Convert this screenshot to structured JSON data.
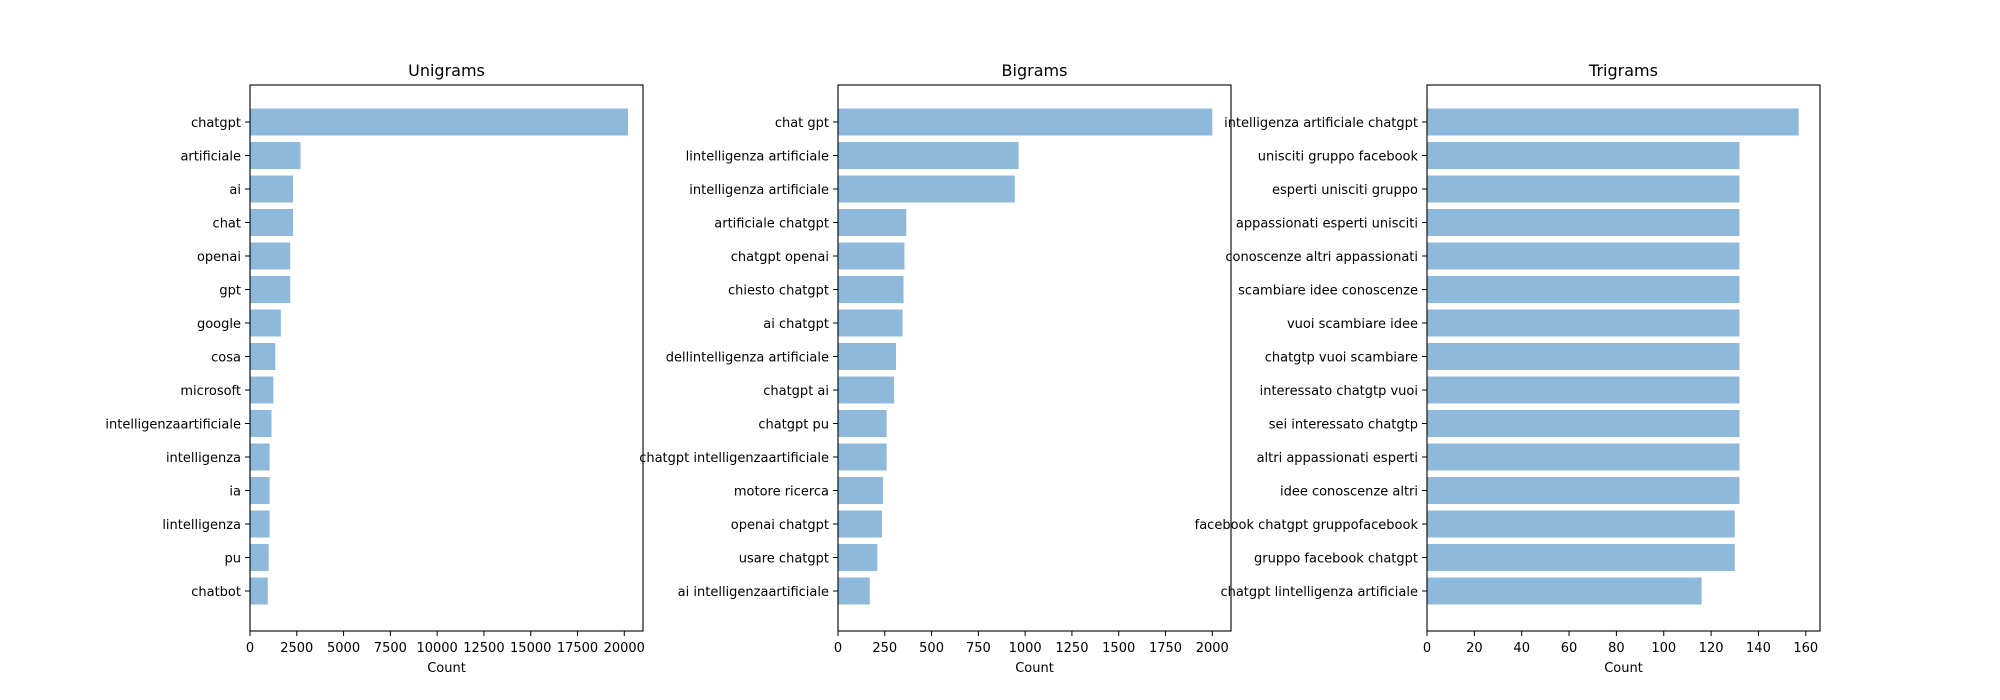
{
  "chart_data": [
    {
      "type": "bar",
      "orientation": "horizontal",
      "title": "Unigrams",
      "xlabel": "Count",
      "ylabel": "",
      "xlim": [
        0,
        21000
      ],
      "xticks": [
        0,
        2500,
        5000,
        7500,
        10000,
        12500,
        15000,
        17500,
        20000
      ],
      "categories": [
        "chatgpt",
        "artificiale",
        "ai",
        "chat",
        "openai",
        "gpt",
        "google",
        "cosa",
        "microsoft",
        "intelligenzaartificiale",
        "intelligenza",
        "ia",
        "lintelligenza",
        "pu",
        "chatbot"
      ],
      "values": [
        20200,
        2700,
        2300,
        2300,
        2150,
        2150,
        1650,
        1350,
        1250,
        1150,
        1050,
        1050,
        1050,
        1000,
        950
      ],
      "bar_color": "#8fb9da",
      "grid": false
    },
    {
      "type": "bar",
      "orientation": "horizontal",
      "title": "Bigrams",
      "xlabel": "Count",
      "ylabel": "",
      "xlim": [
        0,
        2100
      ],
      "xticks": [
        0,
        250,
        500,
        750,
        1000,
        1250,
        1500,
        1750,
        2000
      ],
      "categories": [
        "chat gpt",
        "lintelligenza artificiale",
        "intelligenza artificiale",
        "artificiale chatgpt",
        "chatgpt openai",
        "chiesto chatgpt",
        "ai chatgpt",
        "dellintelligenza artificiale",
        "chatgpt ai",
        "chatgpt pu",
        "chatgpt intelligenzaartificiale",
        "motore ricerca",
        "openai chatgpt",
        "usare chatgpt",
        "ai intelligenzaartificiale"
      ],
      "values": [
        2000,
        965,
        945,
        365,
        355,
        350,
        345,
        310,
        300,
        260,
        260,
        240,
        235,
        210,
        170
      ],
      "bar_color": "#8fb9da",
      "grid": false
    },
    {
      "type": "bar",
      "orientation": "horizontal",
      "title": "Trigrams",
      "xlabel": "Count",
      "ylabel": "",
      "xlim": [
        0,
        166
      ],
      "xticks": [
        0,
        20,
        40,
        60,
        80,
        100,
        120,
        140,
        160
      ],
      "categories": [
        "intelligenza artificiale chatgpt",
        "unisciti gruppo facebook",
        "esperti unisciti gruppo",
        "appassionati esperti unisciti",
        "conoscenze altri appassionati",
        "scambiare idee conoscenze",
        "vuoi scambiare idee",
        "chatgtp vuoi scambiare",
        "interessato chatgtp vuoi",
        "sei interessato chatgtp",
        "altri appassionati esperti",
        "idee conoscenze altri",
        "facebook chatgpt gruppofacebook",
        "gruppo facebook chatgpt",
        "chatgpt lintelligenza artificiale"
      ],
      "values": [
        157,
        132,
        132,
        132,
        132,
        132,
        132,
        132,
        132,
        132,
        132,
        132,
        130,
        130,
        116
      ],
      "bar_color": "#8fb9da",
      "grid": false
    }
  ]
}
